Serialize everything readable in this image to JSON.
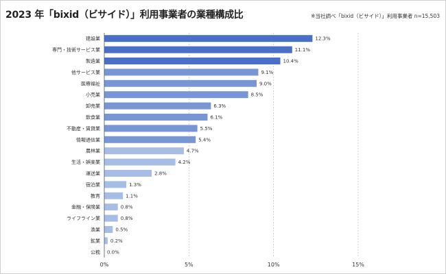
{
  "title": "2023 年「bixid（ビサイド）」利用事業者の業種構成比",
  "note": "※当社調べ「bixid（ビサイド）」利用事業者 n=15,503",
  "colors": {
    "dark": "#4a6fc7",
    "mid": "#7895d6",
    "light": "#a8bde6",
    "grid": "#c8c8c8",
    "axis": "#555555"
  },
  "chart_data": {
    "type": "bar",
    "orientation": "horizontal",
    "title": "2023 年「bixid（ビサイド）」利用事業者の業種構成比",
    "categories": [
      "建設業",
      "専門・技術サービス業",
      "製造業",
      "他サービス業",
      "医療福祉",
      "小売業",
      "卸売業",
      "飲食業",
      "不動産・賃貸業",
      "情報通信業",
      "農林業",
      "生活・娯楽業",
      "運送業",
      "宿泊業",
      "教育",
      "金融・保険業",
      "ライフライン業",
      "漁業",
      "鉱業",
      "公務"
    ],
    "values": [
      12.3,
      11.1,
      10.4,
      9.1,
      9.0,
      8.5,
      6.3,
      6.1,
      5.5,
      5.4,
      4.7,
      4.2,
      2.8,
      1.3,
      1.1,
      0.8,
      0.8,
      0.5,
      0.2,
      0.0
    ],
    "value_labels": [
      "12.3%",
      "11.1%",
      "10.4%",
      "9.1%",
      "9.0%",
      "8.5%",
      "6.3%",
      "6.1%",
      "5.5%",
      "5.4%",
      "4.7%",
      "4.2%",
      "2.8%",
      "1.3%",
      "1.1%",
      "0.8%",
      "0.8%",
      "0.5%",
      "0.2%",
      "0.0%"
    ],
    "xlim": [
      0,
      15
    ],
    "xticks": [
      0,
      5,
      10,
      15
    ],
    "xtick_labels": [
      "0%",
      "5%",
      "10%",
      "15%"
    ],
    "xlabel": "",
    "ylabel": "",
    "grid": "dashed vertical",
    "legend": "none"
  }
}
